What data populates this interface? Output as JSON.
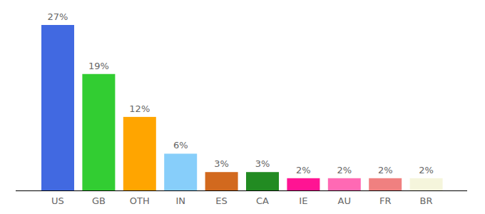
{
  "chart_data": {
    "type": "bar",
    "categories": [
      "US",
      "GB",
      "OTH",
      "IN",
      "ES",
      "CA",
      "IE",
      "AU",
      "FR",
      "BR"
    ],
    "values": [
      27,
      19,
      12,
      6,
      3,
      3,
      2,
      2,
      2,
      2
    ],
    "value_labels": [
      "27%",
      "19%",
      "12%",
      "6%",
      "3%",
      "3%",
      "2%",
      "2%",
      "2%",
      "2%"
    ],
    "colors": [
      "#4169e1",
      "#32cd32",
      "#ffa500",
      "#87cefa",
      "#d2691e",
      "#228b22",
      "#ff1493",
      "#ff69b4",
      "#f08080",
      "#f5f5dc"
    ],
    "data_labels": true,
    "tick_labels": "x",
    "grid": false
  }
}
